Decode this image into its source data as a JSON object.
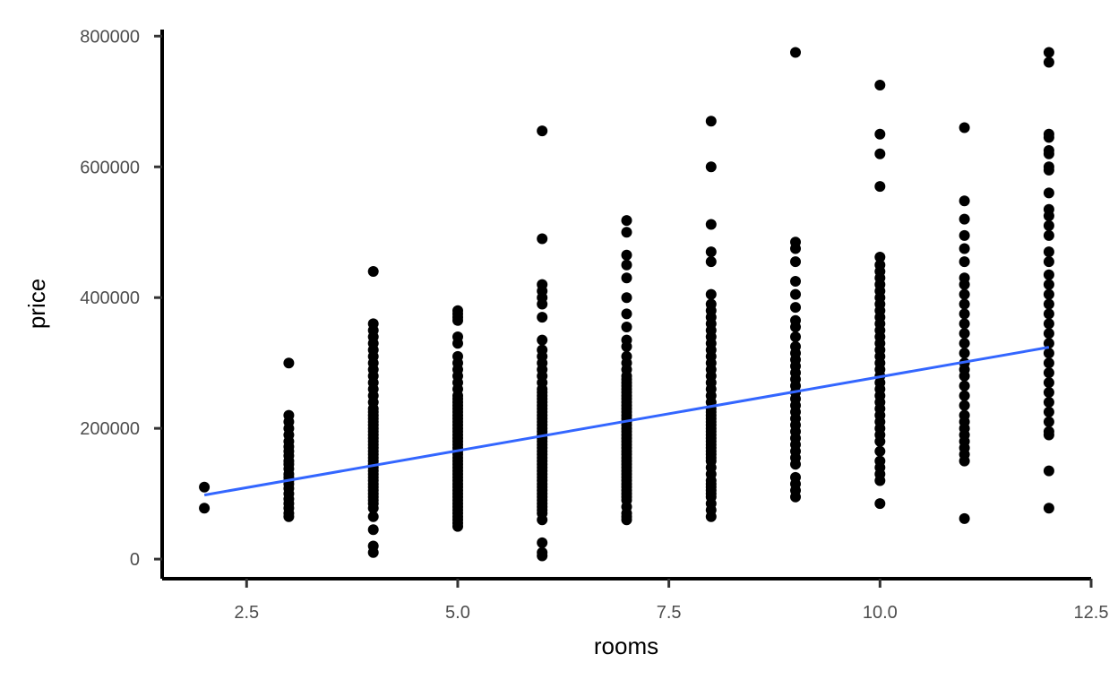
{
  "chart_data": {
    "type": "scatter",
    "title": "",
    "xlabel": "rooms",
    "ylabel": "price",
    "xlim": [
      1.5,
      12.5
    ],
    "ylim": [
      -30000,
      810000
    ],
    "x_ticks": [
      2.5,
      5.0,
      7.5,
      10.0,
      12.5
    ],
    "x_tick_labels": [
      "2.5",
      "5.0",
      "7.5",
      "10.0",
      "12.5"
    ],
    "y_ticks": [
      0,
      200000,
      400000,
      600000,
      800000
    ],
    "y_tick_labels": [
      "0",
      "200000",
      "400000",
      "600000",
      "800000"
    ],
    "grid": false,
    "legend": "none",
    "point_color": "#000000",
    "fit_line": {
      "x_start": 2,
      "y_start": 98000,
      "x_end": 12,
      "y_end": 324000,
      "color": "#3366ff"
    },
    "points_by_rooms": [
      {
        "rooms": 2,
        "prices": [
          78000,
          110000
        ]
      },
      {
        "rooms": 3,
        "prices": [
          65000,
          70000,
          78000,
          85000,
          92000,
          100000,
          108000,
          115000,
          120000,
          125000,
          130000,
          138000,
          145000,
          150000,
          158000,
          165000,
          172000,
          180000,
          190000,
          200000,
          210000,
          220000,
          300000
        ]
      },
      {
        "rooms": 4,
        "prices": [
          10000,
          20000,
          45000,
          65000,
          78000,
          85000,
          90000,
          95000,
          100000,
          105000,
          110000,
          115000,
          120000,
          125000,
          130000,
          135000,
          140000,
          145000,
          150000,
          155000,
          160000,
          165000,
          170000,
          175000,
          180000,
          185000,
          190000,
          195000,
          200000,
          205000,
          210000,
          215000,
          220000,
          225000,
          230000,
          240000,
          250000,
          260000,
          270000,
          280000,
          290000,
          300000,
          310000,
          320000,
          330000,
          340000,
          350000,
          360000,
          440000
        ]
      },
      {
        "rooms": 5,
        "prices": [
          50000,
          55000,
          60000,
          65000,
          70000,
          75000,
          80000,
          85000,
          90000,
          95000,
          100000,
          105000,
          110000,
          115000,
          120000,
          125000,
          130000,
          135000,
          140000,
          145000,
          150000,
          155000,
          160000,
          165000,
          170000,
          175000,
          180000,
          185000,
          190000,
          195000,
          200000,
          205000,
          210000,
          215000,
          220000,
          225000,
          230000,
          235000,
          240000,
          245000,
          250000,
          260000,
          270000,
          280000,
          290000,
          300000,
          310000,
          330000,
          340000,
          365000,
          370000,
          375000,
          380000
        ]
      },
      {
        "rooms": 6,
        "prices": [
          5000,
          10000,
          25000,
          60000,
          70000,
          75000,
          80000,
          85000,
          90000,
          95000,
          100000,
          105000,
          110000,
          115000,
          120000,
          125000,
          130000,
          135000,
          140000,
          145000,
          150000,
          155000,
          160000,
          165000,
          170000,
          175000,
          180000,
          185000,
          190000,
          195000,
          200000,
          205000,
          210000,
          215000,
          220000,
          225000,
          230000,
          235000,
          240000,
          245000,
          250000,
          255000,
          260000,
          270000,
          280000,
          290000,
          300000,
          310000,
          320000,
          335000,
          370000,
          390000,
          400000,
          410000,
          420000,
          490000,
          655000
        ]
      },
      {
        "rooms": 7,
        "prices": [
          60000,
          65000,
          70000,
          80000,
          90000,
          95000,
          100000,
          105000,
          110000,
          115000,
          120000,
          125000,
          130000,
          135000,
          140000,
          145000,
          150000,
          155000,
          160000,
          165000,
          170000,
          175000,
          180000,
          185000,
          190000,
          195000,
          200000,
          205000,
          210000,
          215000,
          220000,
          225000,
          230000,
          235000,
          240000,
          245000,
          250000,
          255000,
          260000,
          265000,
          270000,
          275000,
          280000,
          290000,
          300000,
          310000,
          325000,
          335000,
          355000,
          375000,
          400000,
          430000,
          450000,
          465000,
          500000,
          518000
        ]
      },
      {
        "rooms": 8,
        "prices": [
          65000,
          75000,
          85000,
          95000,
          100000,
          105000,
          110000,
          115000,
          120000,
          130000,
          140000,
          150000,
          155000,
          160000,
          165000,
          170000,
          175000,
          180000,
          185000,
          190000,
          195000,
          200000,
          205000,
          210000,
          215000,
          220000,
          225000,
          230000,
          240000,
          250000,
          260000,
          270000,
          280000,
          290000,
          300000,
          310000,
          320000,
          330000,
          340000,
          350000,
          360000,
          370000,
          380000,
          390000,
          405000,
          455000,
          470000,
          512000,
          600000,
          670000
        ]
      },
      {
        "rooms": 9,
        "prices": [
          95000,
          105000,
          115000,
          125000,
          145000,
          155000,
          165000,
          175000,
          185000,
          195000,
          205000,
          215000,
          225000,
          235000,
          245000,
          255000,
          265000,
          275000,
          285000,
          295000,
          305000,
          315000,
          325000,
          340000,
          355000,
          365000,
          385000,
          405000,
          425000,
          455000,
          475000,
          485000,
          775000
        ]
      },
      {
        "rooms": 10,
        "prices": [
          85000,
          120000,
          130000,
          140000,
          150000,
          165000,
          180000,
          190000,
          200000,
          210000,
          220000,
          230000,
          240000,
          250000,
          260000,
          270000,
          280000,
          290000,
          300000,
          310000,
          320000,
          330000,
          340000,
          350000,
          360000,
          370000,
          380000,
          390000,
          400000,
          410000,
          420000,
          430000,
          440000,
          450000,
          462000,
          570000,
          620000,
          650000,
          725000
        ]
      },
      {
        "rooms": 11,
        "prices": [
          62000,
          150000,
          160000,
          170000,
          180000,
          190000,
          200000,
          210000,
          220000,
          235000,
          250000,
          265000,
          280000,
          290000,
          300000,
          315000,
          330000,
          345000,
          360000,
          375000,
          390000,
          405000,
          420000,
          430000,
          455000,
          475000,
          495000,
          520000,
          548000,
          660000
        ]
      },
      {
        "rooms": 12,
        "prices": [
          78000,
          135000,
          190000,
          195000,
          210000,
          225000,
          240000,
          255000,
          270000,
          285000,
          300000,
          315000,
          330000,
          345000,
          360000,
          375000,
          390000,
          405000,
          420000,
          435000,
          455000,
          470000,
          495000,
          510000,
          525000,
          535000,
          560000,
          595000,
          600000,
          620000,
          625000,
          645000,
          650000,
          760000,
          775000
        ]
      }
    ]
  }
}
